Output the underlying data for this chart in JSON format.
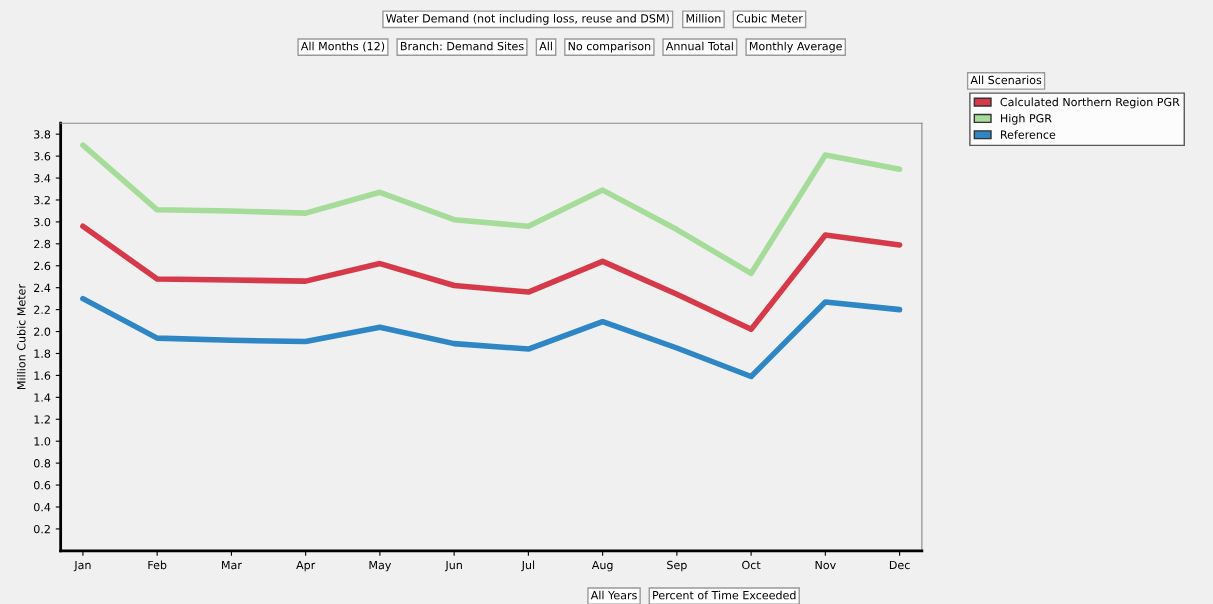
{
  "chart_data": {
    "type": "line",
    "title": "Water Demand (not including loss, reuse and DSM)",
    "ylabel": "Million Cubic Meter",
    "categories": [
      "Jan",
      "Feb",
      "Mar",
      "Apr",
      "May",
      "Jun",
      "Jul",
      "Aug",
      "Sep",
      "Oct",
      "Nov",
      "Dec"
    ],
    "series": [
      {
        "name": "Calculated Northern Region PGR",
        "color": "#d63a4a",
        "values": [
          2.96,
          2.48,
          2.47,
          2.46,
          2.62,
          2.42,
          2.36,
          2.64,
          2.34,
          2.02,
          2.88,
          2.79
        ]
      },
      {
        "name": "High PGR",
        "color": "#a6dc9a",
        "values": [
          3.7,
          3.11,
          3.1,
          3.08,
          3.27,
          3.02,
          2.96,
          3.29,
          2.93,
          2.53,
          3.61,
          3.48
        ]
      },
      {
        "name": "Reference",
        "color": "#2f86c4",
        "values": [
          2.3,
          1.94,
          1.92,
          1.91,
          2.04,
          1.89,
          1.84,
          2.09,
          1.85,
          1.59,
          2.27,
          2.2
        ]
      }
    ],
    "ylim": [
      0,
      3.9
    ],
    "yticks": [
      0.2,
      0.4,
      0.6,
      0.8,
      {
        "value": 1,
        "label": "1.0"
      },
      1.2,
      1.4,
      1.6,
      1.8,
      {
        "value": 2,
        "label": "2.0"
      },
      2.2,
      2.4,
      2.6,
      2.8,
      {
        "value": 3,
        "label": "3.0"
      },
      3.2,
      3.4,
      3.6,
      3.8
    ],
    "grid": false,
    "legend": "top right",
    "marker": "none",
    "line_style": "solid",
    "annotations": [
      "Million",
      "Cubic Meter",
      "All Months (12)",
      "Branch: Demand Sites",
      "All",
      "No comparison",
      "Annual Total",
      "Monthly Average",
      "All Scenarios",
      "All Years",
      "Percent of Time Exceeded"
    ]
  }
}
